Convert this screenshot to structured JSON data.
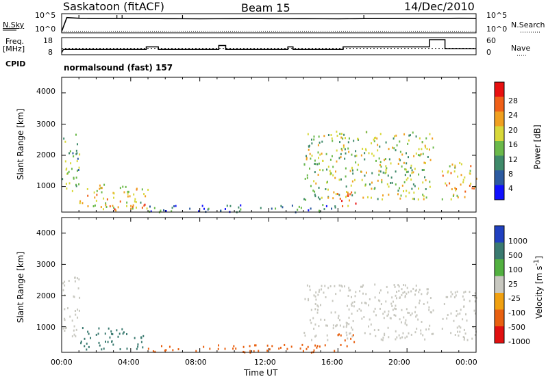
{
  "header": {
    "station": "Saskatoon (fitACF)",
    "beam": "Beam 15",
    "date": "14/Dec/2010"
  },
  "side_labels": {
    "nsky": "N.Sky",
    "nsearch": "N.Search",
    "freq": "Freq.",
    "mhz": "[MHz]",
    "nave": "Nave",
    "cpid": "CPID"
  },
  "cpid_text": "normalsound (fast) 157",
  "ticks": {
    "nsky_top": "10^5",
    "nsky_bottom": "10^0",
    "nsearch_top": "10^5",
    "nsearch_bottom": "10^0",
    "freq": [
      "18",
      "8"
    ],
    "nave": [
      "60",
      "0"
    ],
    "range": [
      "4000",
      "3000",
      "2000",
      "1000"
    ],
    "time": [
      "00:00",
      "04:00",
      "08:00",
      "12:00",
      "16:00",
      "20:00",
      "00:00"
    ]
  },
  "xlabel": "Time UT",
  "chart_data": [
    {
      "type": "line",
      "panel": "noise",
      "ylabel_left": "N.Sky",
      "ylabel_right": "N.Search",
      "xlim": [
        0,
        24
      ],
      "series": [
        {
          "name": "N.Sky",
          "x": [
            0,
            0.3,
            1,
            2,
            3,
            4,
            5,
            6,
            7,
            8,
            9,
            10,
            11,
            12,
            13,
            14,
            15,
            16,
            17,
            18,
            19,
            20,
            21,
            22,
            23,
            24
          ],
          "values": [
            1,
            40000,
            25000,
            20000,
            22000,
            20000,
            21000,
            18000,
            17000,
            16000,
            17000,
            18000,
            19000,
            18000,
            17000,
            18000,
            17000,
            16000,
            18000,
            20000,
            21000,
            22000,
            23000,
            21000,
            24000,
            23000
          ]
        }
      ]
    },
    {
      "type": "line",
      "panel": "frequency",
      "ylabel_left": "Freq. [MHz]",
      "ylabel_right": "Nave",
      "xlim": [
        0,
        24
      ],
      "ylim": [
        8,
        18
      ],
      "series": [
        {
          "name": "Freq.",
          "x": [
            0,
            0.1,
            4.9,
            4.9,
            5.6,
            5.6,
            9.1,
            9.1,
            9.5,
            9.5,
            13.1,
            13.1,
            13.4,
            13.4,
            16.3,
            16.3,
            21.3,
            21.3,
            22.2,
            22.2,
            24
          ],
          "values": [
            8,
            10.5,
            10.5,
            12.5,
            12.5,
            10.5,
            10.5,
            13.5,
            13.5,
            10.5,
            10.5,
            12.5,
            12.5,
            10.5,
            10.5,
            12.5,
            12.5,
            18,
            18,
            11,
            11
          ]
        }
      ],
      "nave_level": 20
    },
    {
      "type": "heatmap",
      "panel": "power",
      "title": "Power [dB]",
      "ylabel": "Slant Range [km]",
      "xlim": [
        0,
        24
      ],
      "ylim": [
        180,
        4500
      ],
      "colorbar": {
        "ticks": [
          4,
          8,
          12,
          16,
          20,
          24,
          28
        ],
        "label": "Power [dB]"
      },
      "regions": [
        {
          "t": [
            0.0,
            1.0
          ],
          "r": [
            700,
            2700
          ],
          "level": 14
        },
        {
          "t": [
            1.0,
            5.0
          ],
          "r": [
            300,
            1100
          ],
          "level": 18
        },
        {
          "t": [
            2.5,
            4.8
          ],
          "r": [
            250,
            500
          ],
          "level": 26
        },
        {
          "t": [
            5.0,
            16.0
          ],
          "r": [
            200,
            450
          ],
          "level": 8
        },
        {
          "t": [
            14.0,
            21.5
          ],
          "r": [
            600,
            2800
          ],
          "level": 16
        },
        {
          "t": [
            15.5,
            17.0
          ],
          "r": [
            400,
            900
          ],
          "level": 24
        },
        {
          "t": [
            22.0,
            24.0
          ],
          "r": [
            600,
            1800
          ],
          "level": 20
        }
      ]
    },
    {
      "type": "heatmap",
      "panel": "velocity",
      "title": "Velocity [m s-1]",
      "ylabel": "Slant Range [km]",
      "xlim": [
        0,
        24
      ],
      "ylim": [
        180,
        4500
      ],
      "colorbar": {
        "ticks": [
          1000,
          500,
          100,
          25,
          -25,
          -100,
          -500,
          -1000
        ],
        "label": "Velocity [m s-1]"
      },
      "regions": [
        {
          "t": [
            0.0,
            1.0
          ],
          "r": [
            700,
            2700
          ],
          "level": 0
        },
        {
          "t": [
            1.0,
            4.8
          ],
          "r": [
            300,
            1000
          ],
          "level": 150
        },
        {
          "t": [
            4.8,
            16.0
          ],
          "r": [
            200,
            450
          ],
          "level": -120
        },
        {
          "t": [
            14.0,
            21.5
          ],
          "r": [
            600,
            2400
          ],
          "level": 0
        },
        {
          "t": [
            15.8,
            17.0
          ],
          "r": [
            400,
            800
          ],
          "level": -200
        },
        {
          "t": [
            22.0,
            24.0
          ],
          "r": [
            600,
            2200
          ],
          "level": 0
        }
      ]
    }
  ],
  "colors": {
    "power_scale": [
      "#1010ff",
      "#2c5aa0",
      "#3f8a6a",
      "#6bb94a",
      "#d8d83a",
      "#f0a020",
      "#f06018",
      "#e81010"
    ],
    "velocity_scale": [
      "#2040c0",
      "#3a7a70",
      "#52b040",
      "#c8c8c0",
      "#f0a010",
      "#e86010",
      "#e01010"
    ]
  }
}
